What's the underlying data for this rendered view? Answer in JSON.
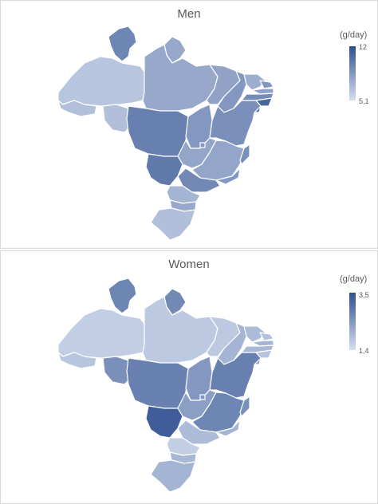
{
  "colors": {
    "low": "#d6dff0",
    "high": "#2f4f8f",
    "border": "#ffffff"
  },
  "men": {
    "title": "Men",
    "legend": {
      "unit": "(g/day)",
      "max": "12",
      "min": "5,1"
    },
    "region_levels": {
      "AM": 0.18,
      "RR": 0.62,
      "AP": 0.38,
      "PA": 0.38,
      "AC": 0.22,
      "RO": 0.22,
      "MT": 0.66,
      "TO": 0.5,
      "MA": 0.42,
      "PI": 0.5,
      "CE": 0.35,
      "RN": 0.5,
      "PB": 0.42,
      "PE": 0.58,
      "AL": 0.85,
      "SE": 0.7,
      "BA": 0.55,
      "GO": 0.4,
      "DF": 0.5,
      "MS": 0.7,
      "MG": 0.4,
      "ES": 0.55,
      "RJ": 0.5,
      "SP": 0.6,
      "PR": 0.3,
      "SC": 0.38,
      "RS": 0.22
    }
  },
  "women": {
    "title": "Women",
    "legend": {
      "unit": "(g/day)",
      "max": "3,5",
      "min": "1,4"
    },
    "region_levels": {
      "AM": 0.12,
      "RR": 0.62,
      "AP": 0.6,
      "PA": 0.15,
      "AC": 0.18,
      "RO": 0.55,
      "MT": 0.65,
      "TO": 0.5,
      "MA": 0.15,
      "PI": 0.3,
      "CE": 0.25,
      "RN": 0.2,
      "PB": 0.3,
      "PE": 0.28,
      "AL": 0.2,
      "SE": 0.45,
      "BA": 0.66,
      "GO": 0.45,
      "DF": 0.5,
      "MS": 0.9,
      "MG": 0.62,
      "ES": 0.55,
      "RJ": 0.3,
      "SP": 0.25,
      "PR": 0.12,
      "SC": 0.28,
      "RS": 0.3
    }
  }
}
